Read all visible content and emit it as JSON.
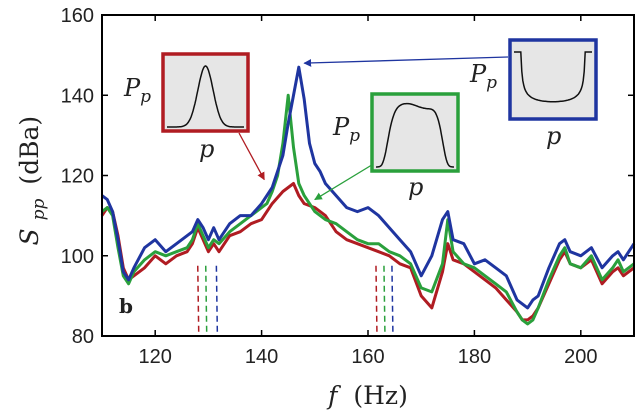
{
  "chart_data": {
    "type": "line",
    "panel_label": "b",
    "xlabel": {
      "symbol": "f",
      "unit": "(Hz)"
    },
    "ylabel": {
      "symbol": "S",
      "subscript": "pp",
      "unit": "(dBa)"
    },
    "xlim": [
      110,
      210
    ],
    "ylim": [
      80,
      160
    ],
    "xticks": [
      120,
      140,
      160,
      180,
      200
    ],
    "yticks": [
      80,
      100,
      120,
      140,
      160
    ],
    "grid": false,
    "series": [
      {
        "color": "#b01c22",
        "x": [
          110,
          111,
          112,
          113,
          114,
          115,
          116,
          118,
          120,
          122,
          124,
          126,
          127,
          128,
          129,
          130,
          131,
          132,
          134,
          136,
          138,
          140,
          142,
          144,
          145,
          146,
          147,
          148,
          150,
          152,
          154,
          156,
          158,
          160,
          162,
          164,
          166,
          168,
          170,
          172,
          174,
          175,
          176,
          178,
          180,
          182,
          184,
          186,
          188,
          189,
          190,
          191,
          192,
          194,
          196,
          197,
          198,
          200,
          202,
          204,
          206,
          207,
          208,
          210
        ],
        "y": [
          110,
          112,
          111,
          105,
          97,
          94,
          95,
          97,
          100,
          98,
          100,
          101,
          103,
          107,
          104,
          101,
          103,
          101,
          105,
          106,
          108,
          109,
          113,
          116,
          117,
          118,
          115,
          113,
          112,
          110,
          106,
          104,
          103,
          102,
          101,
          100,
          98,
          97,
          90,
          87,
          96,
          103,
          99,
          98,
          96,
          94,
          92,
          89,
          86,
          84,
          84,
          85,
          87,
          93,
          99,
          101,
          98,
          97,
          99,
          93,
          96,
          97,
          95,
          97
        ]
      },
      {
        "color": "#2aa03c",
        "x": [
          110,
          111,
          112,
          113,
          114,
          115,
          116,
          118,
          120,
          122,
          124,
          126,
          127,
          128,
          129,
          130,
          131,
          132,
          134,
          136,
          138,
          140,
          141,
          142,
          143,
          144,
          145,
          146,
          147,
          148,
          149,
          150,
          152,
          154,
          156,
          158,
          160,
          162,
          164,
          166,
          168,
          170,
          172,
          174,
          175,
          176,
          178,
          180,
          182,
          184,
          186,
          188,
          189,
          190,
          191,
          192,
          194,
          196,
          197,
          198,
          200,
          202,
          204,
          206,
          207,
          208,
          210
        ],
        "y": [
          111,
          112,
          110,
          102,
          95,
          93,
          96,
          99,
          101,
          100,
          101,
          102,
          104,
          108,
          105,
          102,
          104,
          103,
          106,
          108,
          110,
          112,
          113,
          116,
          120,
          128,
          140,
          127,
          118,
          115,
          113,
          111,
          109,
          108,
          106,
          104,
          103,
          103,
          101,
          100,
          98,
          92,
          91,
          98,
          109,
          101,
          98,
          97,
          95,
          93,
          91,
          86,
          84,
          83,
          84,
          87,
          94,
          100,
          102,
          98,
          97,
          100,
          94,
          97,
          99,
          96,
          98
        ]
      },
      {
        "color": "#1f35a0",
        "x": [
          110,
          111,
          112,
          113,
          114,
          115,
          116,
          118,
          120,
          122,
          124,
          126,
          127,
          128,
          129,
          130,
          131,
          132,
          134,
          136,
          138,
          140,
          142,
          144,
          145,
          146,
          147,
          148,
          149,
          150,
          151,
          152,
          154,
          156,
          158,
          160,
          162,
          164,
          166,
          168,
          170,
          172,
          174,
          175,
          176,
          178,
          180,
          182,
          184,
          186,
          188,
          189,
          190,
          191,
          192,
          194,
          196,
          197,
          198,
          200,
          202,
          204,
          206,
          207,
          208,
          210
        ],
        "y": [
          115,
          114,
          111,
          104,
          96,
          94,
          97,
          102,
          104,
          101,
          103,
          105,
          106,
          109,
          107,
          104,
          107,
          104,
          108,
          110,
          110,
          113,
          117,
          125,
          133,
          140,
          147,
          139,
          128,
          123,
          121,
          118,
          115,
          112,
          111,
          112,
          110,
          107,
          104,
          101,
          95,
          100,
          109,
          111,
          104,
          103,
          98,
          99,
          97,
          95,
          89,
          88,
          87,
          89,
          90,
          97,
          103,
          104,
          101,
          100,
          102,
          97,
          100,
          101,
          99,
          103
        ]
      }
    ],
    "dashed_markers": [
      {
        "color": "#b01c22",
        "x": 128
      },
      {
        "color": "#2aa03c",
        "x": 129.5
      },
      {
        "color": "#1f35a0",
        "x": 131.5
      },
      {
        "color": "#b01c22",
        "x": 161.5
      },
      {
        "color": "#2aa03c",
        "x": 163
      },
      {
        "color": "#1f35a0",
        "x": 164.5
      }
    ],
    "insets": [
      {
        "name": "red",
        "color": "#b01c22",
        "ylabel": "P",
        "ysub": "p",
        "xlabel": "p",
        "shape": "gaussian",
        "arrow_to": [
          140.5,
          119
        ]
      },
      {
        "name": "green",
        "color": "#2aa03c",
        "ylabel": "P",
        "ysub": "p",
        "xlabel": "p",
        "shape": "flattop",
        "arrow_to": [
          150,
          114
        ]
      },
      {
        "name": "blue",
        "color": "#1f35a0",
        "ylabel": "P",
        "ysub": "p",
        "xlabel": "p",
        "shape": "bimodal",
        "arrow_to": [
          148,
          148
        ]
      }
    ]
  }
}
